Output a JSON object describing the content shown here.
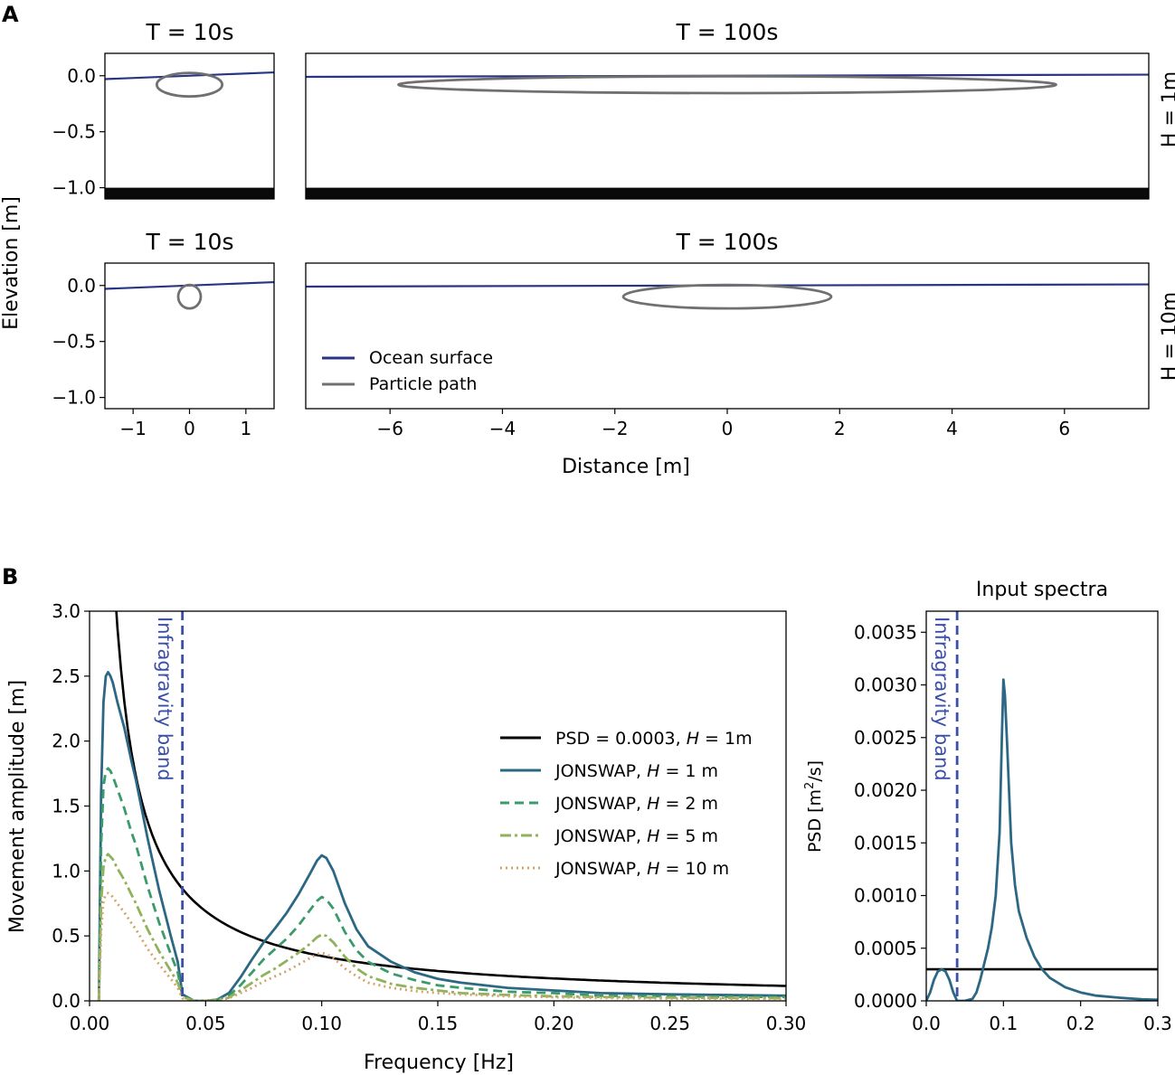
{
  "panel_labels": {
    "a": "A",
    "b": "B"
  },
  "colors": {
    "ocean": "#283583",
    "particle": "#707070",
    "seabed": "#0a0a0a",
    "psd": "#000000",
    "jonswap_1": "#2c6784",
    "jonswap_2": "#3a9a6a",
    "jonswap_5": "#8fb25a",
    "jonswap_10": "#d3a36a",
    "infragravity": "#3b4fa8"
  },
  "panel_a": {
    "titles": {
      "t10": "T = 10s",
      "t100": "T = 100s"
    },
    "row_labels": {
      "h1": "H = 1m",
      "h10": "H = 10m"
    },
    "ylabel": "Elevation [m]",
    "xlabel": "Distance [m]",
    "ylim": [
      -1.1,
      0.2
    ],
    "yticks": [
      "0.0",
      "−0.5",
      "−1.0"
    ],
    "xlim_small": [
      -1.5,
      1.5
    ],
    "xlim_big": [
      -7.5,
      7.5
    ],
    "xticks_small": [
      "−1",
      "0",
      "1"
    ],
    "xticks_big": [
      "−6",
      "−4",
      "−2",
      "0",
      "2",
      "4",
      "6"
    ],
    "legend": {
      "ocean": "Ocean surface",
      "particle": "Particle path"
    }
  },
  "chart_data": [
    {
      "type": "line",
      "title": "",
      "xlabel": "Frequency [Hz]",
      "ylabel": "Movement amplitude [m]",
      "xlim": [
        0,
        0.3
      ],
      "ylim": [
        0,
        3.0
      ],
      "xticks": [
        "0.00",
        "0.05",
        "0.10",
        "0.15",
        "0.20",
        "0.25",
        "0.30"
      ],
      "yticks": [
        "0.0",
        "0.5",
        "1.0",
        "1.5",
        "2.0",
        "2.5",
        "3.0"
      ],
      "annotation": "Infragravity band",
      "infragravity_cutoff": 0.04,
      "series": [
        {
          "name": "PSD = 0.0003, H = 1m",
          "legend_main": "PSD = 0.0003, ",
          "legend_h": "H",
          "legend_tail": " = 1m"
        },
        {
          "name": "JONSWAP, H = 1 m",
          "legend_main": "JONSWAP, ",
          "legend_h": "H",
          "legend_tail": " = 1 m",
          "x": [
            0.004,
            0.005,
            0.006,
            0.007,
            0.008,
            0.009,
            0.01,
            0.012,
            0.015,
            0.018,
            0.02,
            0.025,
            0.03,
            0.035,
            0.038,
            0.04,
            0.045,
            0.05,
            0.055,
            0.06,
            0.065,
            0.07,
            0.075,
            0.08,
            0.085,
            0.09,
            0.095,
            0.098,
            0.1,
            0.102,
            0.105,
            0.11,
            0.115,
            0.12,
            0.13,
            0.14,
            0.15,
            0.16,
            0.18,
            0.2,
            0.22,
            0.25,
            0.3
          ],
          "y": [
            0.0,
            1.6,
            2.3,
            2.5,
            2.53,
            2.5,
            2.45,
            2.3,
            2.1,
            1.85,
            1.7,
            1.25,
            0.85,
            0.5,
            0.3,
            0.05,
            0.0,
            0.0,
            0.01,
            0.06,
            0.18,
            0.32,
            0.45,
            0.56,
            0.68,
            0.82,
            0.98,
            1.08,
            1.12,
            1.1,
            1.0,
            0.75,
            0.55,
            0.42,
            0.3,
            0.22,
            0.17,
            0.14,
            0.1,
            0.08,
            0.06,
            0.05,
            0.04
          ]
        },
        {
          "name": "JONSWAP, H = 2 m",
          "legend_main": "JONSWAP, ",
          "legend_h": "H",
          "legend_tail": " = 2 m",
          "x": [
            0.004,
            0.005,
            0.006,
            0.007,
            0.008,
            0.009,
            0.01,
            0.012,
            0.015,
            0.018,
            0.02,
            0.025,
            0.03,
            0.035,
            0.038,
            0.04,
            0.045,
            0.05,
            0.055,
            0.06,
            0.065,
            0.07,
            0.075,
            0.08,
            0.085,
            0.09,
            0.095,
            0.098,
            0.1,
            0.102,
            0.105,
            0.11,
            0.115,
            0.12,
            0.13,
            0.14,
            0.15,
            0.16,
            0.18,
            0.2,
            0.22,
            0.25,
            0.3
          ],
          "y": [
            0.0,
            1.2,
            1.65,
            1.77,
            1.79,
            1.77,
            1.73,
            1.63,
            1.48,
            1.3,
            1.2,
            0.88,
            0.6,
            0.36,
            0.22,
            0.04,
            0.0,
            0.0,
            0.01,
            0.04,
            0.12,
            0.22,
            0.32,
            0.4,
            0.48,
            0.58,
            0.7,
            0.77,
            0.8,
            0.78,
            0.71,
            0.53,
            0.39,
            0.3,
            0.21,
            0.16,
            0.12,
            0.1,
            0.07,
            0.06,
            0.04,
            0.035,
            0.03
          ]
        },
        {
          "name": "JONSWAP, H = 5 m",
          "legend_main": "JONSWAP, ",
          "legend_h": "H",
          "legend_tail": " = 5 m",
          "x": [
            0.004,
            0.005,
            0.006,
            0.007,
            0.008,
            0.009,
            0.01,
            0.012,
            0.015,
            0.018,
            0.02,
            0.025,
            0.03,
            0.035,
            0.038,
            0.04,
            0.045,
            0.05,
            0.055,
            0.06,
            0.065,
            0.07,
            0.075,
            0.08,
            0.085,
            0.09,
            0.095,
            0.098,
            0.1,
            0.102,
            0.105,
            0.11,
            0.115,
            0.12,
            0.13,
            0.14,
            0.15,
            0.16,
            0.18,
            0.2,
            0.22,
            0.25,
            0.3
          ],
          "y": [
            0.0,
            0.75,
            1.03,
            1.11,
            1.13,
            1.11,
            1.09,
            1.02,
            0.93,
            0.82,
            0.75,
            0.55,
            0.38,
            0.23,
            0.14,
            0.03,
            0.0,
            0.0,
            0.005,
            0.025,
            0.08,
            0.14,
            0.2,
            0.25,
            0.31,
            0.37,
            0.44,
            0.49,
            0.51,
            0.5,
            0.45,
            0.34,
            0.25,
            0.19,
            0.13,
            0.1,
            0.08,
            0.06,
            0.045,
            0.035,
            0.03,
            0.025,
            0.02
          ]
        },
        {
          "name": "JONSWAP, H = 10 m",
          "legend_main": "JONSWAP, ",
          "legend_h": "H",
          "legend_tail": " = 10 m",
          "x": [
            0.004,
            0.005,
            0.006,
            0.007,
            0.008,
            0.009,
            0.01,
            0.012,
            0.015,
            0.018,
            0.02,
            0.025,
            0.03,
            0.035,
            0.038,
            0.04,
            0.045,
            0.05,
            0.055,
            0.06,
            0.065,
            0.07,
            0.075,
            0.08,
            0.085,
            0.09,
            0.095,
            0.098,
            0.1,
            0.102,
            0.105,
            0.11,
            0.115,
            0.12,
            0.13,
            0.14,
            0.15,
            0.16,
            0.18,
            0.2,
            0.22,
            0.25,
            0.3
          ],
          "y": [
            0.0,
            0.55,
            0.77,
            0.82,
            0.83,
            0.82,
            0.8,
            0.75,
            0.68,
            0.6,
            0.55,
            0.4,
            0.28,
            0.17,
            0.1,
            0.02,
            0.0,
            0.0,
            0.004,
            0.02,
            0.06,
            0.1,
            0.15,
            0.19,
            0.23,
            0.28,
            0.33,
            0.36,
            0.37,
            0.36,
            0.33,
            0.25,
            0.19,
            0.14,
            0.1,
            0.075,
            0.06,
            0.05,
            0.035,
            0.028,
            0.022,
            0.018,
            0.015
          ]
        }
      ]
    },
    {
      "type": "line",
      "title": "Input spectra",
      "xlabel": "",
      "ylabel": "PSD [m²/s]",
      "ylabel_main": "PSD [m",
      "ylabel_sup": "2",
      "ylabel_tail": "/s]",
      "xlim": [
        0,
        0.3
      ],
      "ylim": [
        0,
        0.0037
      ],
      "xticks": [
        "0.0",
        "0.1",
        "0.2",
        "0.3"
      ],
      "yticks": [
        "0.0000",
        "0.0005",
        "0.0010",
        "0.0015",
        "0.0020",
        "0.0025",
        "0.0030",
        "0.0035"
      ],
      "annotation": "Infragravity band",
      "infragravity_cutoff": 0.04,
      "series": [
        {
          "name": "PSD = 0.0003",
          "constant": 0.0003
        },
        {
          "name": "JONSWAP",
          "x": [
            0.0,
            0.005,
            0.01,
            0.015,
            0.02,
            0.025,
            0.03,
            0.035,
            0.04,
            0.05,
            0.06,
            0.065,
            0.07,
            0.075,
            0.08,
            0.085,
            0.09,
            0.095,
            0.098,
            0.1,
            0.102,
            0.105,
            0.11,
            0.115,
            0.12,
            0.13,
            0.14,
            0.15,
            0.16,
            0.18,
            0.2,
            0.22,
            0.25,
            0.28,
            0.3
          ],
          "y": [
            0.0,
            8e-05,
            0.0002,
            0.00028,
            0.0003,
            0.00028,
            0.0002,
            8e-05,
            0.0,
            0.0,
            2e-05,
            8e-05,
            0.0002,
            0.00035,
            0.0005,
            0.0007,
            0.001,
            0.0016,
            0.0025,
            0.00305,
            0.0029,
            0.0024,
            0.0015,
            0.0011,
            0.00085,
            0.0006,
            0.00042,
            0.0003,
            0.00022,
            0.00013,
            8e-05,
            5e-05,
            3e-05,
            1.5e-05,
            1e-05
          ]
        }
      ]
    }
  ]
}
